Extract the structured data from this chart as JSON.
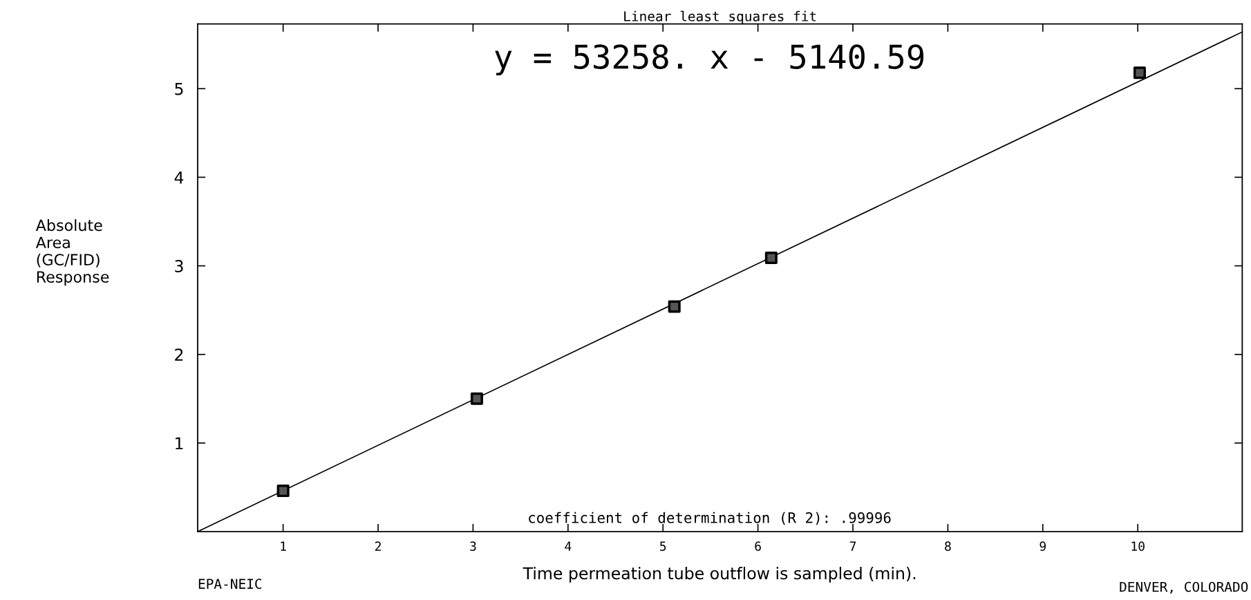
{
  "chart_data": {
    "type": "scatter",
    "title": "Linear least squares fit",
    "xlabel": "Time permeation tube outflow is sampled (min).",
    "ylabel": "Absolute\nArea\n(GC/FID)\nResponse",
    "annotations": [
      "y = 53258. x - 5140.59",
      "coefficient of determination (R 2): .99996",
      "EPA-NEIC",
      "DENVER, COLORADO"
    ],
    "xlim": [
      0.1,
      11.1
    ],
    "ylim": [
      0,
      5.73
    ],
    "xticks": [
      1,
      2,
      3,
      4,
      5,
      6,
      7,
      8,
      9,
      10
    ],
    "yticks": [
      1,
      2,
      3,
      4,
      5
    ],
    "grid": false,
    "legend": false,
    "series": [
      {
        "color": "#000000",
        "marker": "square",
        "x": [
          1.0,
          3.04,
          5.12,
          6.14,
          10.02
        ],
        "values": [
          0.46,
          1.5,
          2.54,
          3.09,
          5.18
        ]
      },
      {
        "type": "line",
        "color": "#000000",
        "marker": "none",
        "line_style": "solid",
        "x": [
          0.1,
          11.1
        ],
        "values": [
          0,
          5.64
        ]
      }
    ]
  }
}
